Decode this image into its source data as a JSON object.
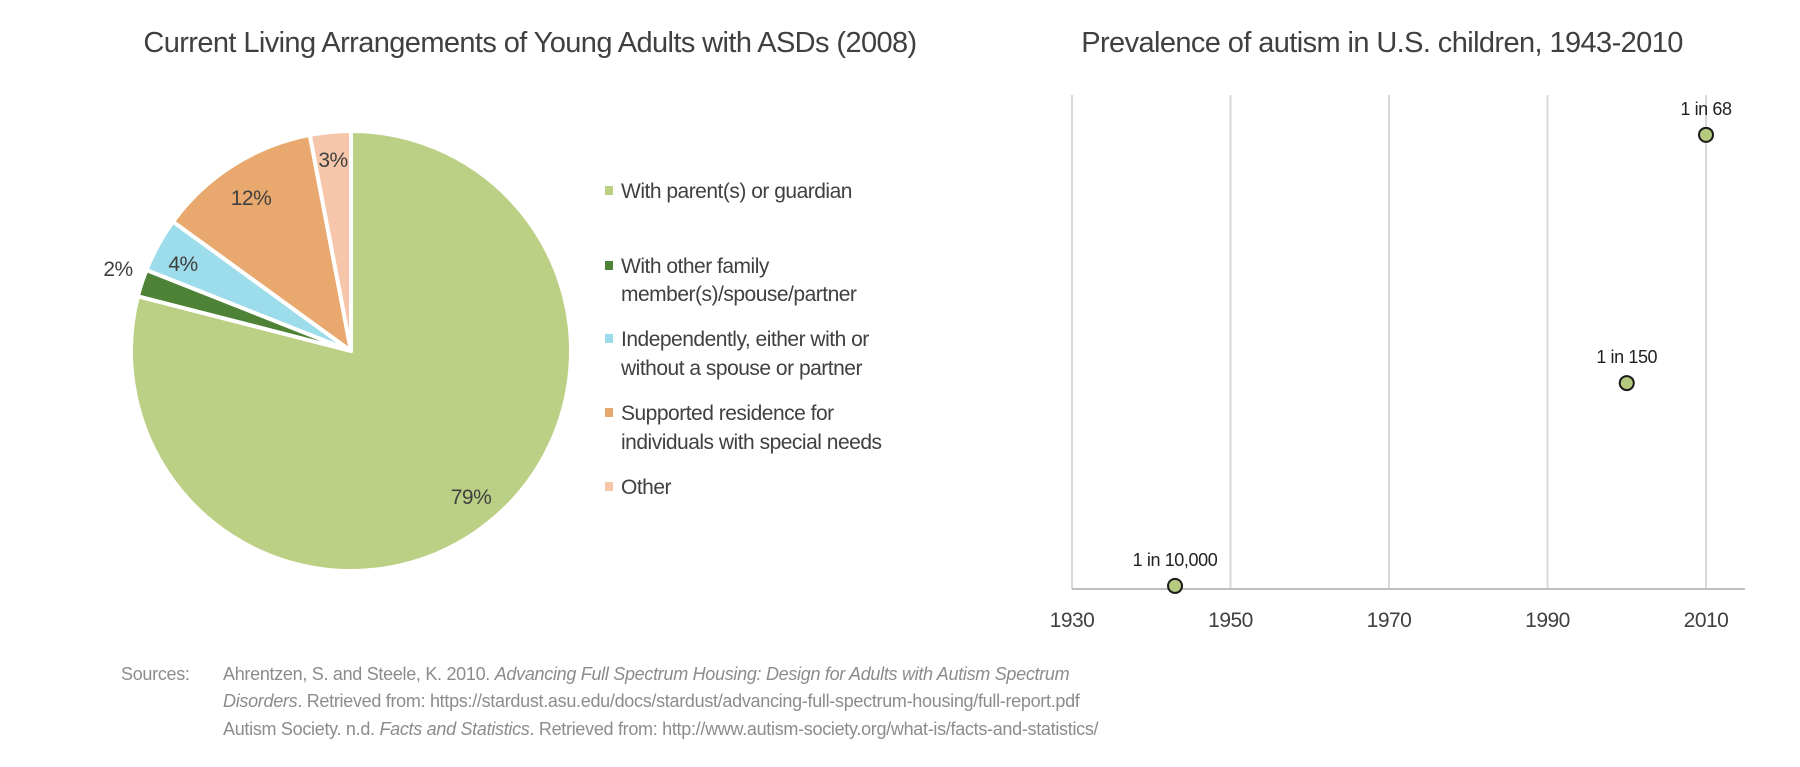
{
  "chart_data": [
    {
      "type": "pie",
      "title": "Current Living Arrangements of Young Adults with ASDs (2008)",
      "legend_position": "right",
      "slices": [
        {
          "label": "With parent(s) or guardian",
          "value": 79,
          "data_label": "79%",
          "color": "#BBCF85"
        },
        {
          "label": "With other family member(s)/spouse/partner",
          "legend_lines": [
            "With other family",
            "member(s)/spouse/partner"
          ],
          "value": 2,
          "data_label": "2%",
          "color": "#4E8236"
        },
        {
          "label": "Independently, either with or without a spouse or partner",
          "legend_lines": [
            "Independently, either with or",
            "without a spouse or partner"
          ],
          "value": 4,
          "data_label": "4%",
          "color": "#9DDCEB"
        },
        {
          "label": "Supported residence for individuals with special needs",
          "legend_lines": [
            "Supported residence for",
            "individuals with special needs"
          ],
          "value": 12,
          "data_label": "12%",
          "color": "#E9A86E"
        },
        {
          "label": "Other",
          "value": 3,
          "data_label": "3%",
          "color": "#F6C6AA"
        }
      ]
    },
    {
      "type": "scatter",
      "title": "Prevalence of autism in U.S. children, 1943-2010",
      "xlabel": "",
      "ylabel": "",
      "xlim": [
        1930,
        2015
      ],
      "ylim": [
        0,
        160
      ],
      "y_units": "cases per 10,000 children",
      "x_ticks": [
        "1930",
        "1950",
        "1970",
        "1990",
        "2010"
      ],
      "grid": "vertical",
      "points": [
        {
          "x": 1943,
          "y": 1,
          "label": "1 in 10,000"
        },
        {
          "x": 2000,
          "y": 66.7,
          "label": "1 in 150"
        },
        {
          "x": 2010,
          "y": 147.1,
          "label": "1 in 68"
        }
      ],
      "marker_color": "#B5C97F"
    }
  ],
  "sources": {
    "label": "Sources:",
    "line1_a": "Ahrentzen, S. and Steele, K. 2010. ",
    "line1_b": "Advancing Full Spectrum Housing: Design for Adults with Autism Spectrum",
    "line2_a": "Disorders",
    "line2_b": ". Retrieved from: https://stardust.asu.edu/docs/stardust/advancing-full-spectrum-housing/full-report.pdf",
    "line3_a": "Autism Society. n.d. ",
    "line3_b": "Facts and Statistics",
    "line3_c": ". Retrieved from: http://www.autism-society.org/what-is/facts-and-statistics/"
  }
}
